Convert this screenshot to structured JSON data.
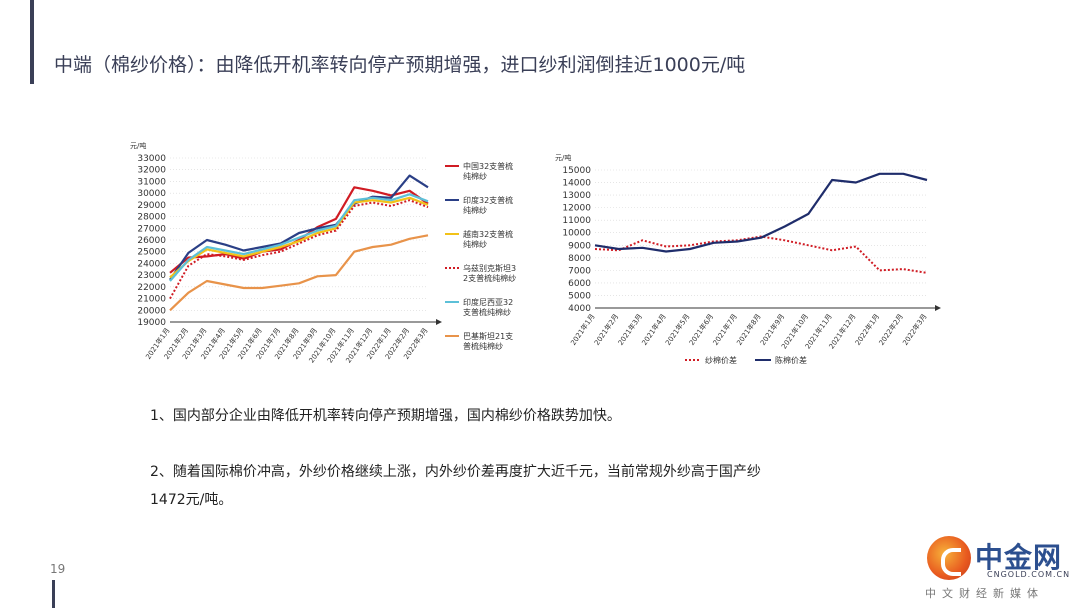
{
  "page": {
    "title": "中端（棉纱价格）：由降低开机率转向停产预期增强，进口纱利润倒挂近1000元/吨",
    "page_number": "19",
    "paragraphs": [
      "1、国内部分企业由降低开机率转向停产预期增强，国内棉纱价格跌势加快。",
      "2、随着国际棉价冲高，外纱价格继续上涨，内外纱价差再度扩大近千元，当前常规外纱高于国产纱",
      "1472元/吨。"
    ],
    "logo": {
      "name": "中金网",
      "domain": "CNGOLD.COM.CN",
      "subtitle": "中文财经新媒体"
    }
  },
  "chart_data": [
    {
      "type": "line",
      "unit_label": "元/吨",
      "ylim": [
        19000,
        33000
      ],
      "yticks": [
        19000,
        20000,
        21000,
        22000,
        23000,
        24000,
        25000,
        26000,
        27000,
        28000,
        29000,
        30000,
        31000,
        32000,
        33000
      ],
      "x_labels": [
        "2021年1月",
        "2021年2月",
        "2021年3月",
        "2021年4月",
        "2021年5月",
        "2021年6月",
        "2021年7月",
        "2021年8月",
        "2021年9月",
        "2021年10月",
        "2021年11月",
        "2021年12月",
        "2022年1月",
        "2022年2月",
        "2022年3月"
      ],
      "series": [
        {
          "name": "中国32支普梳纯棉纱",
          "color": "#d01c24",
          "dash": false,
          "values": [
            23200,
            24500,
            24600,
            24800,
            24400,
            25000,
            25200,
            26000,
            27100,
            27800,
            30500,
            30200,
            29800,
            30200,
            29100
          ]
        },
        {
          "name": "印度32支普梳纯棉纱",
          "color": "#2a3f86",
          "dash": false,
          "values": [
            22600,
            24900,
            26000,
            25600,
            25100,
            25400,
            25700,
            26600,
            27000,
            27300,
            29100,
            29700,
            29600,
            31500,
            30500
          ]
        },
        {
          "name": "越南32支普梳纯棉纱",
          "color": "#f2c218",
          "dash": false,
          "values": [
            22800,
            24200,
            25200,
            24900,
            24600,
            25000,
            25400,
            25900,
            26600,
            27000,
            29200,
            29400,
            29200,
            29600,
            29000
          ]
        },
        {
          "name": "乌兹别克斯坦32支普梳纯棉纱",
          "color": "#d01c24",
          "dash": true,
          "values": [
            21000,
            23800,
            24800,
            24600,
            24300,
            24700,
            25000,
            25700,
            26400,
            26800,
            28900,
            29200,
            28900,
            29400,
            28800
          ]
        },
        {
          "name": "印度尼西亚32支普梳纯棉纱",
          "color": "#5cc0d8",
          "dash": false,
          "values": [
            22500,
            24300,
            25400,
            25100,
            24800,
            25200,
            25600,
            26200,
            26800,
            27200,
            29400,
            29600,
            29400,
            29900,
            29300
          ]
        },
        {
          "name": "巴基斯坦21支普梳纯棉纱",
          "color": "#e8934a",
          "dash": false,
          "values": [
            20000,
            21500,
            22500,
            22200,
            21900,
            21900,
            22100,
            22300,
            22900,
            23000,
            25000,
            25400,
            25600,
            26100,
            26400
          ]
        }
      ]
    },
    {
      "type": "line",
      "unit_label": "元/吨",
      "ylim": [
        4000,
        15000
      ],
      "yticks": [
        4000,
        5000,
        6000,
        7000,
        8000,
        9000,
        10000,
        11000,
        12000,
        13000,
        14000,
        15000
      ],
      "x_labels": [
        "2021年1月",
        "2021年2月",
        "2021年3月",
        "2021年4月",
        "2021年5月",
        "2021年6月",
        "2021年7月",
        "2021年8月",
        "2021年9月",
        "2021年10月",
        "2021年11月",
        "2021年12月",
        "2022年1月",
        "2022年2月",
        "2022年3月"
      ],
      "series": [
        {
          "name": "纱棉价差",
          "color": "#d01c24",
          "dash": true,
          "values": [
            8700,
            8600,
            9400,
            8900,
            9000,
            9300,
            9400,
            9700,
            9400,
            9000,
            8600,
            8900,
            7000,
            7100,
            6800
          ]
        },
        {
          "name": "陈棉价差",
          "color": "#1f2d6b",
          "dash": false,
          "values": [
            9000,
            8700,
            8800,
            8500,
            8700,
            9200,
            9300,
            9600,
            10500,
            11500,
            14200,
            14000,
            14700,
            14700,
            14200
          ]
        }
      ]
    }
  ]
}
